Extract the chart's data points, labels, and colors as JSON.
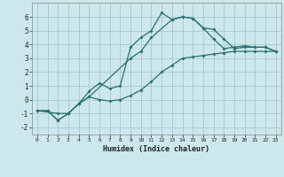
{
  "xlabel": "Humidex (Indice chaleur)",
  "bg_color": "#cce8ec",
  "grid_color": "#aac8cc",
  "line_color": "#2a7070",
  "xlim": [
    -0.5,
    23.5
  ],
  "ylim": [
    -2.5,
    7.0
  ],
  "yticks": [
    -2,
    -1,
    0,
    1,
    2,
    3,
    4,
    5,
    6
  ],
  "xticks": [
    0,
    1,
    2,
    3,
    4,
    5,
    6,
    7,
    8,
    9,
    10,
    11,
    12,
    13,
    14,
    15,
    16,
    17,
    18,
    19,
    20,
    21,
    22,
    23
  ],
  "curve1_x": [
    0,
    1,
    2,
    3,
    4,
    5,
    6,
    7,
    8,
    9,
    10,
    11,
    12,
    13,
    14,
    15,
    16,
    17,
    18,
    19,
    20,
    21,
    22,
    23
  ],
  "curve1_y": [
    -0.8,
    -0.8,
    -1.5,
    -1.0,
    -0.3,
    0.6,
    1.2,
    0.8,
    1.0,
    3.8,
    4.5,
    5.0,
    6.3,
    5.8,
    6.0,
    5.9,
    5.2,
    4.4,
    3.7,
    3.8,
    3.9,
    3.8,
    3.8,
    3.5
  ],
  "curve2_x": [
    0,
    1,
    2,
    3,
    4,
    5,
    6,
    7,
    8,
    9,
    10,
    11,
    12,
    13,
    14,
    15,
    16,
    17,
    18,
    19,
    20,
    21,
    22,
    23
  ],
  "curve2_y": [
    -0.8,
    -0.8,
    -1.5,
    -1.0,
    -0.3,
    0.2,
    0.0,
    -0.1,
    0.0,
    0.3,
    0.7,
    1.3,
    2.0,
    2.5,
    3.0,
    3.1,
    3.2,
    3.3,
    3.4,
    3.5,
    3.5,
    3.5,
    3.5,
    3.5
  ],
  "curve3_x": [
    0,
    2,
    3,
    4,
    5,
    9,
    10,
    11,
    13,
    14,
    15,
    16,
    17,
    18,
    19,
    20,
    21,
    22,
    23
  ],
  "curve3_y": [
    -0.8,
    -1.0,
    -1.0,
    -0.3,
    0.2,
    3.0,
    3.5,
    4.5,
    5.8,
    6.0,
    5.9,
    5.2,
    5.1,
    4.4,
    3.7,
    3.8,
    3.8,
    3.8,
    3.5
  ]
}
